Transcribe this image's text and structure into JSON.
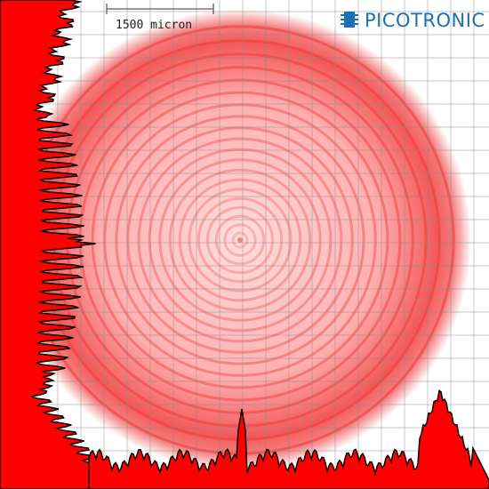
{
  "scale_bar": {
    "label": "1500 micron"
  },
  "logo": {
    "text": "PICOTRONIC"
  }
}
